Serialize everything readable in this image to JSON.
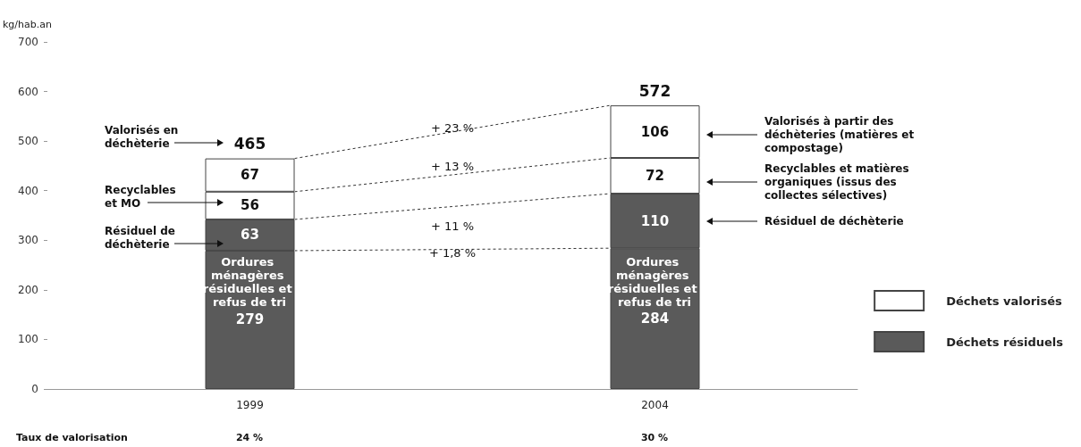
{
  "chart_data": {
    "type": "bar",
    "stacked": true,
    "ylabel": "kg/hab.an",
    "categories": [
      "1999",
      "2004"
    ],
    "series": [
      {
        "name": "Déchets résiduels",
        "color": "#5a5a5a",
        "values": [
          279,
          284
        ]
      },
      {
        "color": "#5a5a5a",
        "values": [
          63,
          110
        ]
      },
      {
        "name": "Déchets valorisés",
        "color": "#ffffff",
        "values": [
          56,
          72
        ]
      },
      {
        "color": "#ffffff",
        "values": [
          67,
          106
        ]
      }
    ],
    "ylim": [
      0,
      700
    ],
    "yticks": [
      0,
      100,
      200,
      300,
      400,
      500,
      600,
      700
    ],
    "grid": false,
    "legend": "right",
    "data_labels": true,
    "totals": [
      "465",
      "572"
    ],
    "annotations": [
      "Ordures ménagères résiduelles et refus de tri",
      "Ordures ménagères résiduelles et refus de tri",
      "Valorisés en déchèterie",
      "Recyclables et MO",
      "Résiduel de déchèterie",
      "Valorisés à partir des déchèteries (matières et compostage)",
      "Recyclables et matières organiques (issus des collectes sélectives)",
      "Résiduel de déchèterie",
      "+ 23 %",
      "+ 13 %",
      "+ 11 %",
      "+ 1,8 %",
      "Taux de valorisation",
      "24 %",
      "30 %"
    ]
  }
}
